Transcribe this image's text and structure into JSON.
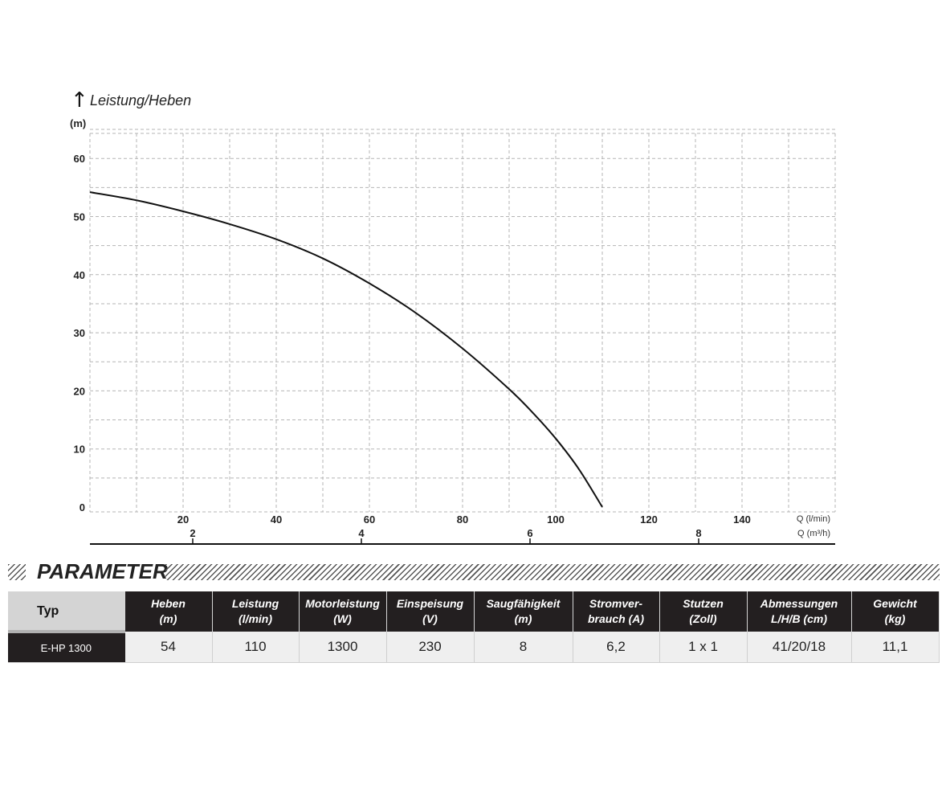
{
  "chart_data": {
    "type": "line",
    "title": "Leistung/Heben",
    "ylabel_unit": "(m)",
    "xlabel_unit": "Q (l/min)",
    "x2label_unit": "Q (m³/h)",
    "xlim": [
      0,
      160
    ],
    "ylim": [
      0,
      65
    ],
    "y_ticks": [
      0,
      10,
      20,
      30,
      40,
      50,
      60
    ],
    "x_ticks": [
      20,
      40,
      60,
      80,
      100,
      120,
      140
    ],
    "x2_ticks": [
      2,
      4,
      6,
      8
    ],
    "grid": true,
    "series": [
      {
        "x": [
          0,
          10,
          20,
          30,
          40,
          50,
          60,
          70,
          80,
          90,
          95,
          100,
          105,
          110
        ],
        "y": [
          54.2,
          52.8,
          50.9,
          48.7,
          46.1,
          42.8,
          38.5,
          33.4,
          27.3,
          20.3,
          16.3,
          11.8,
          6.5,
          0
        ]
      }
    ]
  },
  "params": {
    "section_title": "PARAMETER",
    "headers": [
      {
        "line1": "Typ",
        "line2": ""
      },
      {
        "line1": "Heben",
        "line2": "(m)"
      },
      {
        "line1": "Leistung",
        "line2": "(l/min)"
      },
      {
        "line1": "Motorleistung",
        "line2": "(W)"
      },
      {
        "line1": "Einspeisung",
        "line2": "(V)"
      },
      {
        "line1": "Saugfähigkeit",
        "line2": "(m)"
      },
      {
        "line1": "Stromver-",
        "line2": "brauch (A)"
      },
      {
        "line1": "Stutzen",
        "line2": "(Zoll)"
      },
      {
        "line1": "Abmessungen",
        "line2": "L/H/B (cm)"
      },
      {
        "line1": "Gewicht",
        "line2": "(kg)"
      }
    ],
    "row": [
      "E-HP 1300",
      "54",
      "110",
      "1300",
      "230",
      "8",
      "6,2",
      "1 x 1",
      "41/20/18",
      "11,1"
    ]
  }
}
